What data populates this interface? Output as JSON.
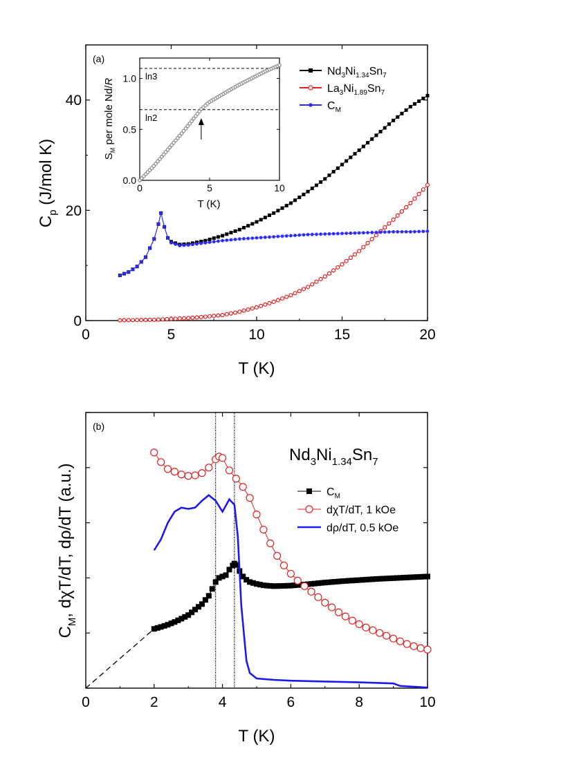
{
  "chart_data": [
    {
      "panel_label": "(a)",
      "type": "scatter",
      "xlabel": "T (K)",
      "ylabel": {
        "main": "C",
        "sub": "p",
        "rest": " (J/mol K)"
      },
      "xlim": [
        0,
        20
      ],
      "ylim": [
        0,
        50
      ],
      "x_ticks": [
        0,
        5,
        10,
        15,
        20
      ],
      "y_ticks": [
        0,
        20,
        40
      ],
      "grid": false,
      "legend_position": "top-right",
      "series": [
        {
          "name": "Nd3Ni1.34Sn7",
          "legend": [
            [
              "Nd",
              ""
            ],
            [
              "3",
              "sub"
            ],
            [
              "Ni",
              ""
            ],
            [
              "1.34",
              "sub"
            ],
            [
              "Sn",
              ""
            ],
            [
              "7",
              "sub"
            ]
          ],
          "color": "#000000",
          "marker": "filled-square",
          "points": [
            [
              2.0,
              8.2
            ],
            [
              2.5,
              8.8
            ],
            [
              3.0,
              9.8
            ],
            [
              3.5,
              11.5
            ],
            [
              4.0,
              14.8
            ],
            [
              4.25,
              17.5
            ],
            [
              4.4,
              19.5
            ],
            [
              4.6,
              17.0
            ],
            [
              4.8,
              15.0
            ],
            [
              5.0,
              14.3
            ],
            [
              5.5,
              13.8
            ],
            [
              6,
              13.9
            ],
            [
              7,
              14.5
            ],
            [
              8,
              15.4
            ],
            [
              9,
              16.5
            ],
            [
              10,
              17.9
            ],
            [
              11,
              19.5
            ],
            [
              12,
              21.3
            ],
            [
              13,
              23.4
            ],
            [
              14,
              25.7
            ],
            [
              15,
              28.3
            ],
            [
              16,
              30.9
            ],
            [
              17,
              33.6
            ],
            [
              18,
              36.3
            ],
            [
              19,
              38.8
            ],
            [
              20,
              40.8
            ]
          ]
        },
        {
          "name": "La3Ni1.89Sn7",
          "legend": [
            [
              "La",
              ""
            ],
            [
              "3",
              "sub"
            ],
            [
              "Ni",
              ""
            ],
            [
              "1.89",
              "sub"
            ],
            [
              "Sn",
              ""
            ],
            [
              "7",
              "sub"
            ]
          ],
          "color": "#e02020",
          "marker": "open-circle",
          "points": [
            [
              2,
              0.05
            ],
            [
              3,
              0.1
            ],
            [
              4,
              0.15
            ],
            [
              5,
              0.3
            ],
            [
              6,
              0.45
            ],
            [
              7,
              0.7
            ],
            [
              8,
              1.0
            ],
            [
              9,
              1.6
            ],
            [
              10,
              2.4
            ],
            [
              11,
              3.4
            ],
            [
              12,
              4.6
            ],
            [
              13,
              6.1
            ],
            [
              14,
              8.0
            ],
            [
              15,
              10.2
            ],
            [
              16,
              12.6
            ],
            [
              17,
              15.5
            ],
            [
              18,
              18.3
            ],
            [
              19,
              21.3
            ],
            [
              20,
              24.6
            ]
          ]
        },
        {
          "name": "CM",
          "legend": [
            [
              "C",
              ""
            ],
            [
              "M",
              "sub"
            ]
          ],
          "color": "#2a2aff",
          "marker": "star",
          "points": [
            [
              2.0,
              8.2
            ],
            [
              2.5,
              8.8
            ],
            [
              3.0,
              9.8
            ],
            [
              3.5,
              11.5
            ],
            [
              4.0,
              14.8
            ],
            [
              4.25,
              17.5
            ],
            [
              4.4,
              19.5
            ],
            [
              4.6,
              17.0
            ],
            [
              4.8,
              15.0
            ],
            [
              5.0,
              14.1
            ],
            [
              5.5,
              13.6
            ],
            [
              6,
              13.7
            ],
            [
              7,
              14.1
            ],
            [
              8,
              14.5
            ],
            [
              9,
              14.8
            ],
            [
              10,
              15.0
            ],
            [
              11,
              15.2
            ],
            [
              12,
              15.4
            ],
            [
              13,
              15.6
            ],
            [
              14,
              15.7
            ],
            [
              15,
              15.8
            ],
            [
              16,
              15.9
            ],
            [
              17,
              16.0
            ],
            [
              18,
              16.1
            ],
            [
              19,
              16.1
            ],
            [
              20,
              16.2
            ]
          ]
        }
      ],
      "inset": {
        "xlabel": "T (K)",
        "ylabel": {
          "main": "S",
          "sub": "M",
          "rest": " per mole Nd/",
          "italic": "R"
        },
        "xlim": [
          0,
          10
        ],
        "ylim": [
          0,
          1.2
        ],
        "x_ticks": [
          0,
          5,
          10
        ],
        "y_ticks": [
          0.0,
          0.5,
          1.0
        ],
        "y_tick_labels": [
          "0.0",
          "0.5",
          "1.0"
        ],
        "reference_lines": [
          {
            "label": "ln3",
            "value": 1.0986
          },
          {
            "label": "ln2",
            "value": 0.6931
          }
        ],
        "arrow_at_T": 4.4,
        "series": {
          "color": "#888888",
          "marker": "open-circle",
          "points": [
            [
              0,
              0
            ],
            [
              1,
              0.14
            ],
            [
              2,
              0.3
            ],
            [
              3,
              0.46
            ],
            [
              4,
              0.63
            ],
            [
              4.4,
              0.7
            ],
            [
              5,
              0.77
            ],
            [
              6,
              0.85
            ],
            [
              7,
              0.93
            ],
            [
              8,
              1.0
            ],
            [
              9,
              1.07
            ],
            [
              10,
              1.13
            ]
          ]
        }
      }
    },
    {
      "panel_label": "(b)",
      "type": "line",
      "annotation": [
        [
          "Nd",
          ""
        ],
        [
          "3",
          "sub"
        ],
        [
          "Ni",
          ""
        ],
        [
          "1.34",
          "sub"
        ],
        [
          "Sn",
          ""
        ],
        [
          "7",
          "sub"
        ]
      ],
      "xlabel": "T (K)",
      "ylabel": [
        [
          "C",
          ""
        ],
        [
          "M",
          "sub"
        ],
        [
          ", dχT/dT, dρ/dT (a.u.)",
          ""
        ]
      ],
      "xlim": [
        0,
        10
      ],
      "ylim": [
        0,
        1
      ],
      "x_ticks": [
        0,
        2,
        4,
        6,
        8,
        10
      ],
      "y_ticks": [
        0,
        0.2,
        0.4,
        0.6,
        0.8,
        1.0
      ],
      "grid": false,
      "legend_position": "right",
      "vertical_lines_T": [
        3.8,
        4.35
      ],
      "extrapolation": {
        "from": [
          0,
          0
        ],
        "to": [
          2.0,
          0.215
        ]
      },
      "series": [
        {
          "name": "CM",
          "legend": [
            [
              "C",
              ""
            ],
            [
              "M",
              "sub"
            ]
          ],
          "color": "#000000",
          "marker": "filled-square",
          "line": "thin",
          "points": [
            [
              2.0,
              0.215
            ],
            [
              2.2,
              0.222
            ],
            [
              2.4,
              0.23
            ],
            [
              2.6,
              0.24
            ],
            [
              2.8,
              0.252
            ],
            [
              3.0,
              0.265
            ],
            [
              3.2,
              0.285
            ],
            [
              3.4,
              0.305
            ],
            [
              3.6,
              0.335
            ],
            [
              3.7,
              0.36
            ],
            [
              3.8,
              0.385
            ],
            [
              3.9,
              0.4
            ],
            [
              4.0,
              0.405
            ],
            [
              4.1,
              0.41
            ],
            [
              4.2,
              0.43
            ],
            [
              4.3,
              0.445
            ],
            [
              4.35,
              0.452
            ],
            [
              4.4,
              0.447
            ],
            [
              4.5,
              0.425
            ],
            [
              4.6,
              0.405
            ],
            [
              4.7,
              0.393
            ],
            [
              4.8,
              0.385
            ],
            [
              5.0,
              0.378
            ],
            [
              5.2,
              0.373
            ],
            [
              5.5,
              0.37
            ],
            [
              5.8,
              0.371
            ],
            [
              6.0,
              0.372
            ],
            [
              6.5,
              0.377
            ],
            [
              7,
              0.383
            ],
            [
              7.5,
              0.388
            ],
            [
              8,
              0.392
            ],
            [
              8.5,
              0.396
            ],
            [
              9,
              0.399
            ],
            [
              9.5,
              0.402
            ],
            [
              10,
              0.405
            ]
          ]
        },
        {
          "name": "dχT/dT, 1 kOe",
          "legend": [
            [
              "dχT/dT, 1 kOe",
              ""
            ]
          ],
          "color": "#e02020",
          "marker": "open-circle",
          "line": "thin",
          "points": [
            [
              2.0,
              0.855
            ],
            [
              2.2,
              0.82
            ],
            [
              2.4,
              0.795
            ],
            [
              2.6,
              0.785
            ],
            [
              2.8,
              0.775
            ],
            [
              3.0,
              0.77
            ],
            [
              3.2,
              0.772
            ],
            [
              3.4,
              0.78
            ],
            [
              3.6,
              0.8
            ],
            [
              3.8,
              0.83
            ],
            [
              3.9,
              0.84
            ],
            [
              4.0,
              0.835
            ],
            [
              4.2,
              0.79
            ],
            [
              4.4,
              0.76
            ],
            [
              4.6,
              0.73
            ],
            [
              4.8,
              0.69
            ],
            [
              5.0,
              0.63
            ],
            [
              5.2,
              0.575
            ],
            [
              5.4,
              0.525
            ],
            [
              5.6,
              0.48
            ],
            [
              5.8,
              0.445
            ],
            [
              6.0,
              0.415
            ],
            [
              6.2,
              0.39
            ],
            [
              6.4,
              0.37
            ],
            [
              6.6,
              0.35
            ],
            [
              6.8,
              0.33
            ],
            [
              7.0,
              0.31
            ],
            [
              7.2,
              0.293
            ],
            [
              7.4,
              0.275
            ],
            [
              7.6,
              0.26
            ],
            [
              7.8,
              0.245
            ],
            [
              8.0,
              0.232
            ],
            [
              8.2,
              0.22
            ],
            [
              8.4,
              0.21
            ],
            [
              8.6,
              0.2
            ],
            [
              8.8,
              0.19
            ],
            [
              9.0,
              0.18
            ],
            [
              9.2,
              0.17
            ],
            [
              9.4,
              0.16
            ],
            [
              9.6,
              0.152
            ],
            [
              9.8,
              0.145
            ],
            [
              10,
              0.14
            ]
          ]
        },
        {
          "name": "dρ/dT, 0.5 kOe",
          "legend": [
            [
              "dρ/dT, 0.5 kOe",
              ""
            ]
          ],
          "color": "#1a1aee",
          "marker": "none",
          "line": "thick",
          "points": [
            [
              2.0,
              0.5
            ],
            [
              2.2,
              0.54
            ],
            [
              2.4,
              0.6
            ],
            [
              2.6,
              0.64
            ],
            [
              2.8,
              0.655
            ],
            [
              3.0,
              0.65
            ],
            [
              3.2,
              0.655
            ],
            [
              3.4,
              0.68
            ],
            [
              3.6,
              0.7
            ],
            [
              3.8,
              0.68
            ],
            [
              4.0,
              0.64
            ],
            [
              4.2,
              0.685
            ],
            [
              4.35,
              0.665
            ],
            [
              4.45,
              0.55
            ],
            [
              4.55,
              0.3
            ],
            [
              4.7,
              0.1
            ],
            [
              4.8,
              0.055
            ],
            [
              5.0,
              0.035
            ],
            [
              5.5,
              0.03
            ],
            [
              6,
              0.027
            ],
            [
              7,
              0.024
            ],
            [
              8,
              0.021
            ],
            [
              9,
              0.017
            ],
            [
              9.2,
              0.008
            ],
            [
              10,
              0.002
            ]
          ]
        }
      ]
    }
  ]
}
